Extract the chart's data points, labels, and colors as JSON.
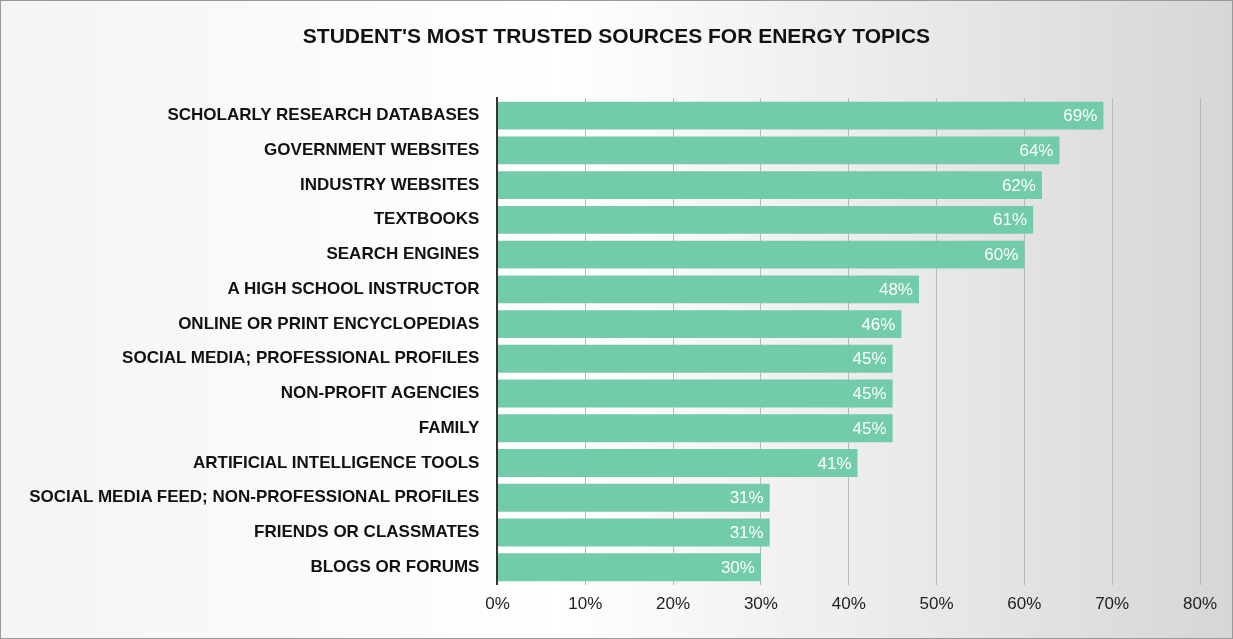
{
  "chart_data": {
    "type": "bar",
    "orientation": "horizontal",
    "title": "STUDENT'S MOST TRUSTED SOURCES FOR ENERGY TOPICS",
    "categories": [
      "SCHOLARLY RESEARCH DATABASES",
      "GOVERNMENT WEBSITES",
      "INDUSTRY WEBSITES",
      "TEXTBOOKS",
      "SEARCH ENGINES",
      "A HIGH SCHOOL INSTRUCTOR",
      "ONLINE OR PRINT ENCYCLOPEDIAS",
      "SOCIAL MEDIA; PROFESSIONAL PROFILES",
      "NON-PROFIT AGENCIES",
      "FAMILY",
      "ARTIFICIAL INTELLIGENCE TOOLS",
      "SOCIAL MEDIA FEED; NON-PROFESSIONAL PROFILES",
      "FRIENDS OR CLASSMATES",
      "BLOGS OR FORUMS"
    ],
    "values": [
      69,
      64,
      62,
      61,
      60,
      48,
      46,
      45,
      45,
      45,
      41,
      31,
      31,
      30
    ],
    "value_labels": [
      "69%",
      "64%",
      "62%",
      "61%",
      "60%",
      "48%",
      "46%",
      "45%",
      "45%",
      "45%",
      "41%",
      "31%",
      "31%",
      "30%"
    ],
    "color": "#72cba9",
    "xlim": [
      0,
      80
    ],
    "xticks": [
      {
        "value": 0,
        "label": "0%"
      },
      {
        "value": 10,
        "label": "10%"
      },
      {
        "value": 20,
        "label": "20%"
      },
      {
        "value": 30,
        "label": "30%"
      },
      {
        "value": 40,
        "label": "40%"
      },
      {
        "value": 50,
        "label": "50%"
      },
      {
        "value": 60,
        "label": "60%"
      },
      {
        "value": 70,
        "label": "70%"
      },
      {
        "value": 80,
        "label": "80%"
      }
    ],
    "grid": "x",
    "legend": false
  }
}
